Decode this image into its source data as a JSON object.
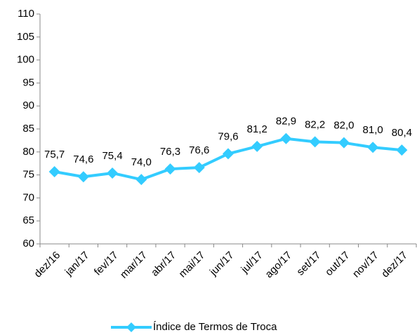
{
  "chart_data": {
    "type": "line",
    "categories": [
      "dez/16",
      "jan/17",
      "fev/17",
      "mar/17",
      "abr/17",
      "mai/17",
      "jun/17",
      "jul/17",
      "ago/17",
      "set/17",
      "out/17",
      "nov/17",
      "dez/17"
    ],
    "series": [
      {
        "name": "Índice de Termos de Troca",
        "color": "#33ccff",
        "values": [
          75.7,
          74.6,
          75.4,
          74.0,
          76.3,
          76.6,
          79.6,
          81.2,
          82.9,
          82.2,
          82.0,
          81.0,
          80.4
        ],
        "value_labels": [
          "75,7",
          "74,6",
          "75,4",
          "74,0",
          "76,3",
          "76,6",
          "79,6",
          "81,2",
          "82,9",
          "82,2",
          "82,0",
          "81,0",
          "80,4"
        ]
      }
    ],
    "ylim": [
      60,
      110
    ],
    "yticks": [
      60,
      65,
      70,
      75,
      80,
      85,
      90,
      95,
      100,
      105,
      110
    ],
    "grid": false,
    "legend": "bottom"
  }
}
